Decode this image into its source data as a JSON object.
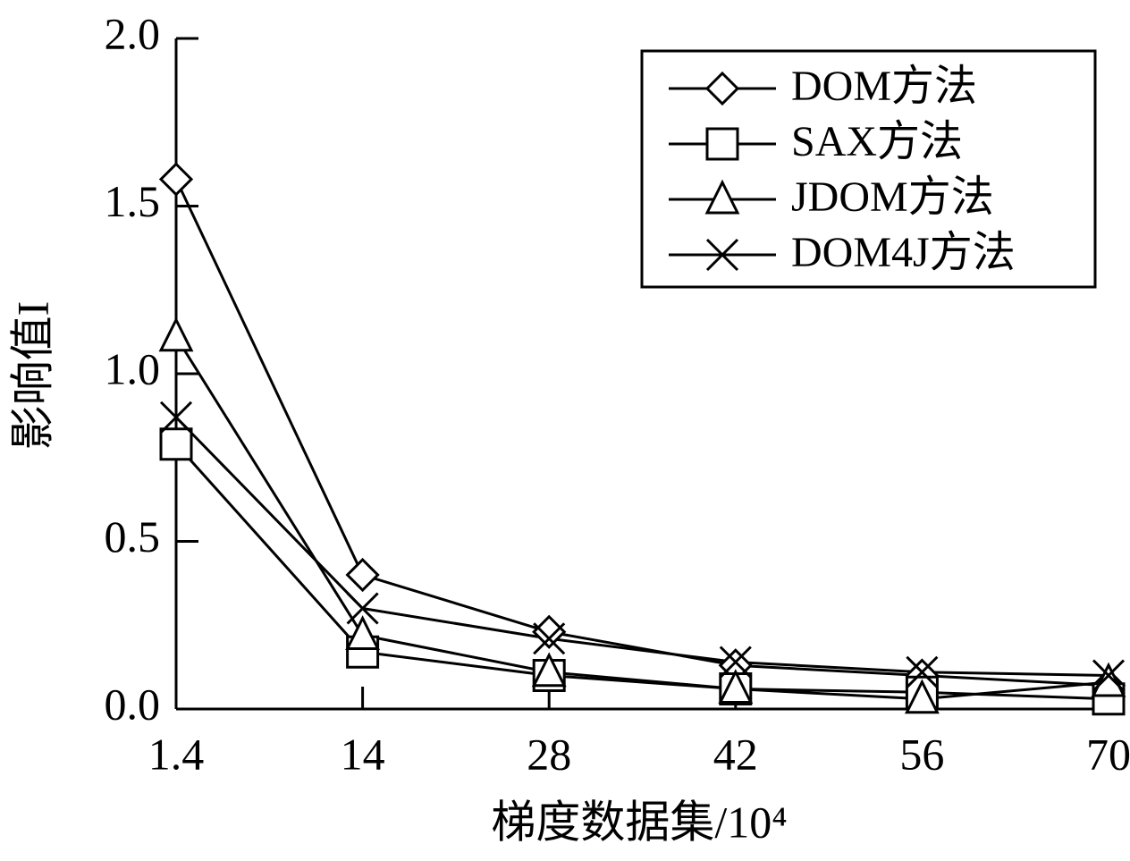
{
  "chart_data": {
    "type": "line",
    "x_label": "梯度数据集/10⁴",
    "y_label": "影响值I",
    "categories": [
      "1.4",
      "14",
      "28",
      "42",
      "56",
      "70"
    ],
    "ylim": [
      0,
      2
    ],
    "yticks": [
      {
        "value": 0,
        "label": "0.0"
      },
      0.5,
      {
        "value": 1,
        "label": "1.0"
      },
      1.5,
      {
        "value": 2,
        "label": "2.0"
      }
    ],
    "legend": "top-right",
    "series": [
      {
        "name": "DOM方法",
        "color": "#000000",
        "marker": "diamond",
        "values": [
          1.58,
          0.4,
          0.23,
          0.13,
          0.1,
          0.07
        ]
      },
      {
        "name": "SAX方法",
        "color": "#000000",
        "marker": "square",
        "values": [
          0.79,
          0.17,
          0.1,
          0.06,
          0.05,
          0.03
        ]
      },
      {
        "name": "JDOM方法",
        "color": "#000000",
        "marker": "triangle",
        "values": [
          1.11,
          0.22,
          0.11,
          0.06,
          0.03,
          0.08
        ]
      },
      {
        "name": "DOM4J方法",
        "color": "#000000",
        "marker": "x",
        "values": [
          0.87,
          0.3,
          0.21,
          0.14,
          0.11,
          0.1
        ]
      }
    ]
  }
}
